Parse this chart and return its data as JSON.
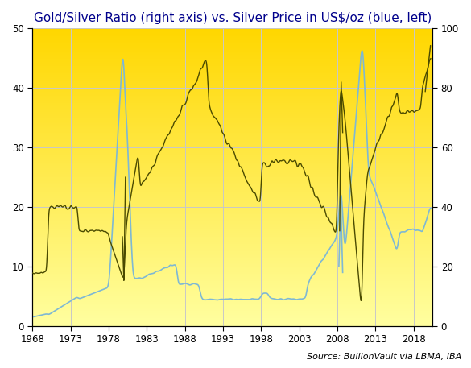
{
  "title": "Gold/Silver Ratio (right axis) vs. Silver Price in US$/oz (blue, left)",
  "source_text": "Source: BullionVault via LBMA, IBA",
  "xlim": [
    1968,
    2020.5
  ],
  "ylim_left": [
    0,
    50
  ],
  "ylim_right": [
    0,
    100
  ],
  "xticks": [
    1968,
    1973,
    1978,
    1983,
    1988,
    1993,
    1998,
    2003,
    2008,
    2013,
    2018
  ],
  "yticks_left": [
    0,
    10,
    20,
    30,
    40,
    50
  ],
  "yticks_right": [
    0,
    20,
    40,
    60,
    80,
    100
  ],
  "background_top": "#FFD700",
  "background_bottom": "#FFFFA0",
  "silver_color": "#7EB8D4",
  "ratio_color": "#4A4A00",
  "grid_color": "#C8C8C8",
  "title_color": "#00008B",
  "title_fontsize": 11
}
